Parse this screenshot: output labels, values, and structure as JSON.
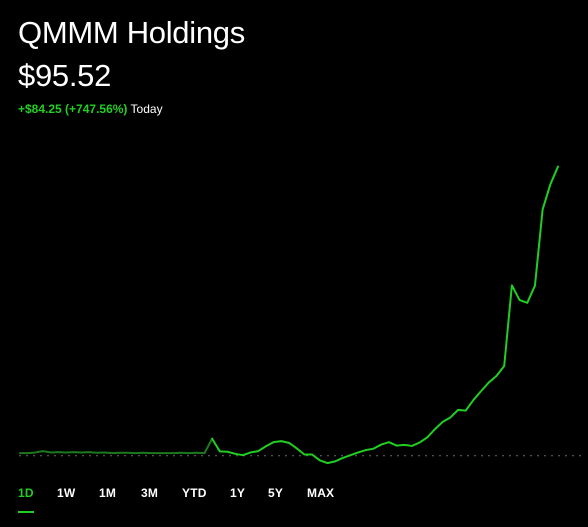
{
  "stock": {
    "name": "QMMM Holdings",
    "price": "$95.52",
    "change": "+$84.25 (+747.56%)",
    "period": "Today"
  },
  "colors": {
    "accent": "#21ce22",
    "accent_dim": "#1b7a1d",
    "background": "#000000",
    "baseline": "#6b6b6b"
  },
  "range_tabs": [
    {
      "label": "1D",
      "active": true
    },
    {
      "label": "1W",
      "active": false
    },
    {
      "label": "1M",
      "active": false
    },
    {
      "label": "3M",
      "active": false
    },
    {
      "label": "YTD",
      "active": false
    },
    {
      "label": "1Y",
      "active": false
    },
    {
      "label": "5Y",
      "active": false
    },
    {
      "label": "MAX",
      "active": false
    }
  ],
  "chart_data": {
    "type": "line",
    "title": "",
    "xlabel": "",
    "ylabel": "",
    "grid": false,
    "previous_close": 11.27,
    "ylim": [
      10.0,
      98.0
    ],
    "series": [
      {
        "segment": "premarket",
        "color": "#1b7a1d",
        "values": [
          12.0,
          12.0,
          12.2,
          12.6,
          12.2,
          12.3,
          12.2,
          12.3,
          12.2,
          12.3,
          12.1,
          12.2,
          12.0,
          12.1,
          12.1,
          12.0,
          12.1,
          12.0,
          12.0,
          12.0,
          12.0,
          12.1,
          12.0,
          12.1,
          12.0,
          16.2
        ]
      },
      {
        "segment": "regular",
        "color": "#21ce22",
        "values": [
          16.2,
          12.5,
          12.4,
          11.8,
          11.4,
          12.2,
          12.6,
          14.0,
          15.2,
          15.5,
          15.0,
          13.4,
          11.6,
          11.6,
          9.9,
          9.1,
          9.6,
          10.6,
          11.4,
          12.2,
          12.9,
          13.3,
          14.5,
          15.2,
          14.2,
          14.4,
          14.1,
          15.1,
          16.6,
          19.0,
          21.1,
          22.4,
          24.6,
          24.4,
          27.5,
          30.1,
          32.6,
          34.5,
          37.4,
          60.9,
          56.6,
          55.8,
          60.8,
          83.0,
          90.3,
          95.5
        ]
      }
    ]
  }
}
